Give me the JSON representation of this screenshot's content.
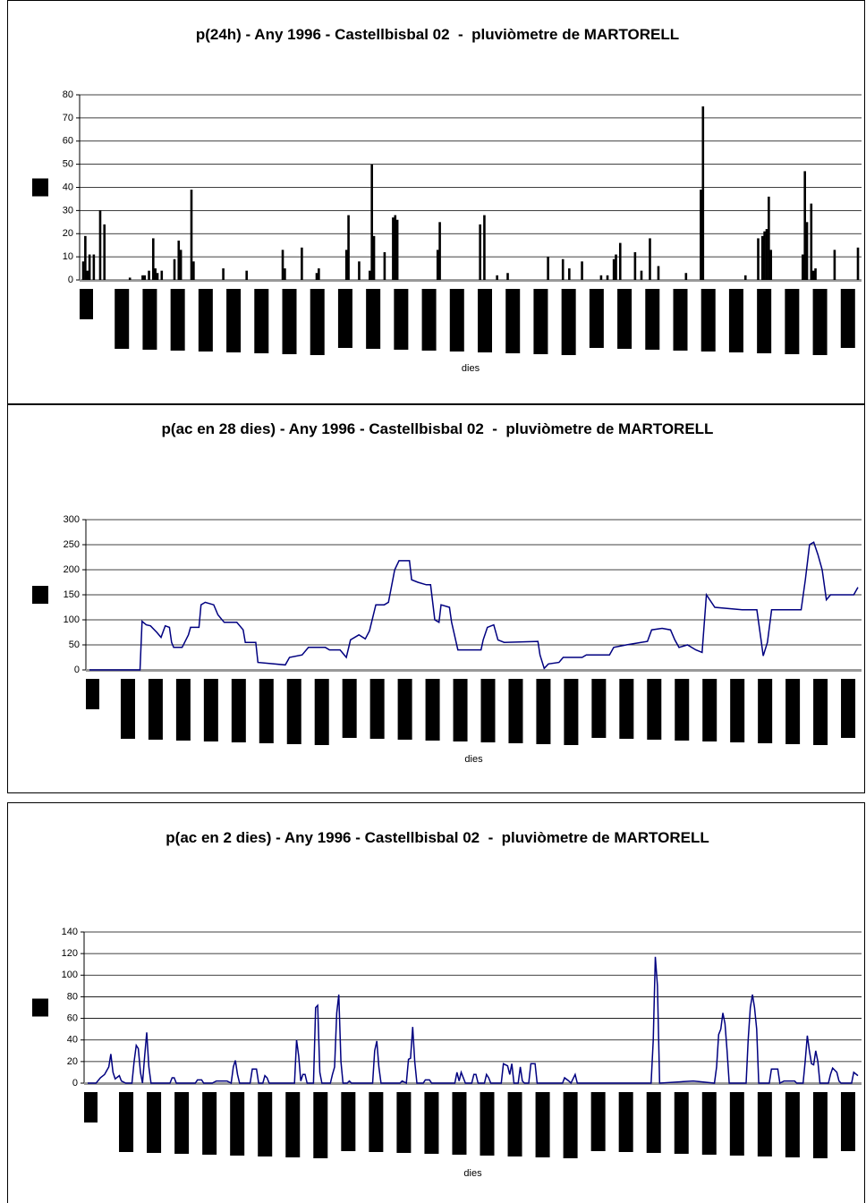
{
  "chart_data": [
    {
      "type": "bar",
      "title": "p(24h) - Any 1996 - Castellbisbal 02  -  pluviòmetre de MARTORELL",
      "x_label": "dies",
      "color": "#000000",
      "grid": true,
      "xlim": [
        1,
        366
      ],
      "ylim": [
        0,
        80
      ],
      "yticks": [
        0,
        10,
        20,
        30,
        40,
        50,
        60,
        70,
        80
      ],
      "x": [
        1,
        2,
        3,
        4,
        6,
        9,
        11,
        23,
        29,
        30,
        32,
        34,
        35,
        36,
        38,
        44,
        46,
        47,
        52,
        53,
        67,
        78,
        95,
        96,
        104,
        111,
        112,
        125,
        126,
        131,
        136,
        137,
        138,
        143,
        147,
        148,
        149,
        168,
        169,
        188,
        190,
        196,
        201,
        220,
        227,
        230,
        236,
        245,
        248,
        251,
        252,
        254,
        261,
        264,
        268,
        272,
        285,
        292,
        293,
        313,
        319,
        321,
        322,
        323,
        324,
        325,
        340,
        341,
        342,
        344,
        345,
        346,
        355,
        366
      ],
      "values": [
        8,
        19,
        4,
        11,
        11,
        30,
        24,
        1,
        2,
        2,
        4,
        18,
        5,
        3,
        4,
        9,
        17,
        13,
        39,
        8,
        5,
        4,
        13,
        5,
        14,
        3,
        5,
        13,
        28,
        8,
        4,
        50,
        19,
        12,
        27,
        28,
        26,
        13,
        25,
        24,
        28,
        2,
        3,
        10,
        9,
        5,
        8,
        2,
        2,
        9,
        11,
        16,
        12,
        4,
        18,
        6,
        3,
        39,
        75,
        2,
        18,
        19,
        21,
        22,
        36,
        13,
        11,
        47,
        25,
        33,
        4,
        5,
        13,
        14
      ]
    },
    {
      "type": "line",
      "title": "p(ac en 28 dies) - Any 1996 - Castellbisbal 02  -  pluviòmetre de MARTORELL",
      "x_label": "dies",
      "color": "#000080",
      "grid": true,
      "xlim": [
        1,
        366
      ],
      "ylim": [
        0,
        300
      ],
      "yticks": [
        0,
        50,
        100,
        150,
        200,
        250,
        300
      ],
      "x": [
        1,
        25,
        26,
        28,
        30,
        33,
        35,
        37,
        39,
        40,
        41,
        45,
        48,
        49,
        53,
        54,
        56,
        60,
        62,
        65,
        71,
        74,
        75,
        80,
        81,
        94,
        96,
        102,
        105,
        113,
        115,
        120,
        123,
        125,
        129,
        132,
        134,
        137,
        141,
        143,
        146,
        148,
        153,
        154,
        157,
        161,
        163,
        165,
        167,
        168,
        172,
        173,
        176,
        187,
        188,
        190,
        193,
        195,
        198,
        214,
        215,
        217,
        219,
        224,
        226,
        235,
        237,
        248,
        250,
        256,
        263,
        266,
        268,
        273,
        277,
        279,
        281,
        285,
        289,
        292,
        294,
        298,
        311,
        318,
        320,
        321,
        323,
        325,
        339,
        341,
        343,
        345,
        347,
        349,
        351,
        353,
        364,
        366
      ],
      "values": [
        0,
        0,
        97,
        90,
        88,
        75,
        65,
        88,
        85,
        55,
        45,
        45,
        70,
        85,
        85,
        130,
        135,
        130,
        110,
        95,
        95,
        80,
        55,
        55,
        15,
        10,
        25,
        30,
        45,
        45,
        40,
        40,
        25,
        60,
        70,
        62,
        78,
        130,
        130,
        135,
        200,
        218,
        218,
        180,
        175,
        170,
        170,
        100,
        95,
        130,
        125,
        95,
        40,
        40,
        60,
        85,
        90,
        60,
        55,
        57,
        30,
        3,
        12,
        15,
        25,
        25,
        30,
        30,
        45,
        50,
        55,
        57,
        80,
        83,
        80,
        60,
        45,
        50,
        40,
        35,
        150,
        125,
        120,
        120,
        60,
        28,
        55,
        120,
        120,
        180,
        250,
        255,
        230,
        200,
        140,
        150,
        150,
        165
      ]
    },
    {
      "type": "line",
      "title": "p(ac en 2 dies) - Any 1996 - Castellbisbal 02  -  pluviòmetre de MARTORELL",
      "x_label": "dies",
      "color": "#000080",
      "grid": true,
      "xlim": [
        1,
        366
      ],
      "ylim": [
        0,
        140
      ],
      "yticks": [
        0,
        20,
        40,
        60,
        80,
        100,
        120,
        140
      ],
      "x": [
        1,
        5,
        7,
        9,
        11,
        12,
        13,
        14,
        16,
        17,
        19,
        22,
        23,
        24,
        25,
        26,
        27,
        28,
        29,
        30,
        31,
        40,
        41,
        42,
        43,
        52,
        53,
        55,
        56,
        60,
        62,
        67,
        69,
        70,
        71,
        72,
        73,
        78,
        79,
        81,
        82,
        84,
        85,
        86,
        87,
        99,
        100,
        101,
        102,
        103,
        104,
        105,
        108,
        109,
        110,
        111,
        112,
        116,
        117,
        118,
        119,
        120,
        121,
        122,
        124,
        125,
        126,
        136,
        137,
        138,
        139,
        140,
        149,
        150,
        152,
        153,
        154,
        155,
        156,
        157,
        160,
        161,
        163,
        164,
        175,
        176,
        177,
        178,
        179,
        180,
        183,
        184,
        185,
        186,
        189,
        190,
        191,
        192,
        197,
        198,
        200,
        201,
        202,
        203,
        205,
        206,
        207,
        208,
        210,
        211,
        213,
        214,
        226,
        227,
        229,
        230,
        232,
        233,
        268,
        269,
        270,
        271,
        272,
        288,
        298,
        299,
        300,
        301,
        302,
        303,
        304,
        305,
        313,
        314,
        315,
        316,
        317,
        318,
        319,
        324,
        325,
        328,
        329,
        331,
        336,
        337,
        340,
        341,
        342,
        343,
        344,
        345,
        346,
        347,
        348,
        352,
        353,
        354,
        356,
        357,
        358,
        363,
        364,
        366
      ],
      "values": [
        0,
        0,
        5,
        8,
        15,
        27,
        10,
        4,
        7,
        2,
        0,
        0,
        20,
        35,
        32,
        10,
        0,
        25,
        47,
        15,
        0,
        0,
        5,
        5,
        0,
        0,
        3,
        3,
        0,
        0,
        2,
        2,
        0,
        15,
        21,
        8,
        0,
        0,
        13,
        13,
        0,
        0,
        7,
        5,
        0,
        0,
        40,
        25,
        2,
        8,
        8,
        0,
        0,
        70,
        72,
        10,
        0,
        0,
        8,
        15,
        65,
        82,
        20,
        0,
        0,
        2,
        0,
        0,
        30,
        39,
        15,
        0,
        0,
        2,
        0,
        22,
        23,
        52,
        20,
        0,
        0,
        3,
        3,
        0,
        0,
        10,
        2,
        10,
        5,
        0,
        0,
        8,
        8,
        0,
        0,
        8,
        5,
        0,
        0,
        18,
        16,
        8,
        18,
        0,
        0,
        15,
        2,
        0,
        0,
        18,
        18,
        0,
        0,
        5,
        2,
        0,
        8,
        0,
        0,
        40,
        117,
        90,
        0,
        2,
        0,
        15,
        45,
        50,
        65,
        55,
        30,
        0,
        0,
        40,
        70,
        82,
        70,
        50,
        0,
        0,
        13,
        13,
        0,
        2,
        2,
        0,
        0,
        20,
        44,
        30,
        18,
        17,
        30,
        20,
        0,
        0,
        8,
        14,
        10,
        2,
        0,
        0,
        10,
        7
      ]
    }
  ]
}
